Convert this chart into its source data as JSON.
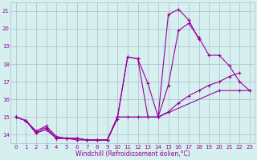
{
  "xlabel": "Windchill (Refroidissement éolien,°C)",
  "background_color": "#d6f0f0",
  "grid_color": "#b0b8cc",
  "line_color": "#990099",
  "xlim": [
    -0.5,
    23.5
  ],
  "ylim": [
    13.5,
    21.5
  ],
  "yticks": [
    14,
    15,
    16,
    17,
    18,
    19,
    20,
    21
  ],
  "xticks": [
    0,
    1,
    2,
    3,
    4,
    5,
    6,
    7,
    8,
    9,
    10,
    11,
    12,
    13,
    14,
    15,
    16,
    17,
    18,
    19,
    20,
    21,
    22,
    23
  ],
  "series": [
    {
      "x": [
        0,
        1,
        2,
        3,
        4,
        5,
        6,
        7,
        8,
        9,
        10,
        11,
        12,
        13,
        14,
        15,
        16,
        17,
        18,
        19,
        20,
        21,
        22,
        23
      ],
      "y": [
        15.0,
        14.8,
        14.2,
        14.4,
        13.8,
        13.8,
        13.8,
        13.7,
        13.7,
        13.7,
        14.9,
        18.4,
        18.3,
        16.9,
        15.0,
        20.8,
        21.1,
        20.5,
        19.4,
        null,
        null,
        null,
        null,
        null
      ]
    },
    {
      "x": [
        0,
        1,
        2,
        3,
        4,
        5,
        6,
        7,
        8,
        9,
        10,
        11,
        12,
        13,
        14,
        15,
        16,
        17,
        18,
        19,
        20,
        21,
        22,
        23
      ],
      "y": [
        15.0,
        14.8,
        14.1,
        14.3,
        13.8,
        13.8,
        13.8,
        13.7,
        13.7,
        13.7,
        15.0,
        18.4,
        18.3,
        15.0,
        15.0,
        16.8,
        19.9,
        20.3,
        19.5,
        18.5,
        18.5,
        17.9,
        17.0,
        16.5
      ]
    },
    {
      "x": [
        0,
        1,
        2,
        3,
        4,
        5,
        6,
        7,
        8,
        9,
        10,
        11,
        12,
        13,
        14,
        15,
        16,
        17,
        18,
        19,
        20,
        21,
        22,
        23
      ],
      "y": [
        15.0,
        14.8,
        14.2,
        14.5,
        13.9,
        13.8,
        13.7,
        13.7,
        13.7,
        13.7,
        15.0,
        15.0,
        15.0,
        15.0,
        15.0,
        15.3,
        15.8,
        16.2,
        16.5,
        16.8,
        17.0,
        17.3,
        17.5,
        null
      ]
    },
    {
      "x": [
        0,
        1,
        2,
        3,
        4,
        5,
        6,
        7,
        8,
        9,
        10,
        14,
        20,
        22,
        23
      ],
      "y": [
        15.0,
        14.8,
        14.1,
        14.3,
        13.8,
        13.8,
        13.8,
        13.7,
        13.7,
        13.7,
        15.0,
        15.0,
        16.5,
        16.5,
        16.5
      ]
    }
  ]
}
